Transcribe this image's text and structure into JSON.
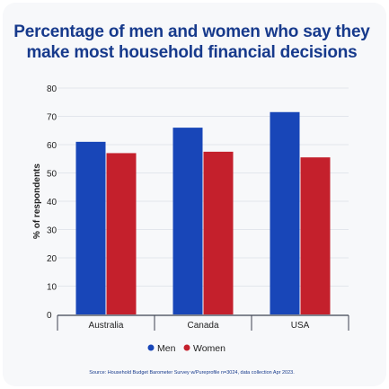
{
  "title": "Percentage of men and women who say they make most household financial decisions",
  "source": "Source: Household Budget Barometer Survey w/Pureprofile n=3024, data collection Apr 2023.",
  "colors": {
    "men": "#1846b8",
    "women": "#c4202c",
    "title": "#173a8c",
    "grid": "#e3e6ec",
    "axis": "#3c4150",
    "text": "#222222"
  },
  "chart_data": {
    "type": "bar",
    "title": "Percentage of men and women who say they make most household financial decisions",
    "xlabel": "",
    "ylabel": "% of respondents",
    "categories": [
      "Australia",
      "Canada",
      "USA"
    ],
    "series": [
      {
        "name": "Men",
        "values": [
          61,
          66,
          71.5
        ]
      },
      {
        "name": "Women",
        "values": [
          57,
          57.5,
          55.5
        ]
      }
    ],
    "ylim": [
      0,
      80
    ],
    "yticks": [
      0,
      10,
      20,
      30,
      40,
      50,
      60,
      70,
      80
    ],
    "grid": true,
    "legend": "bottom-center"
  }
}
